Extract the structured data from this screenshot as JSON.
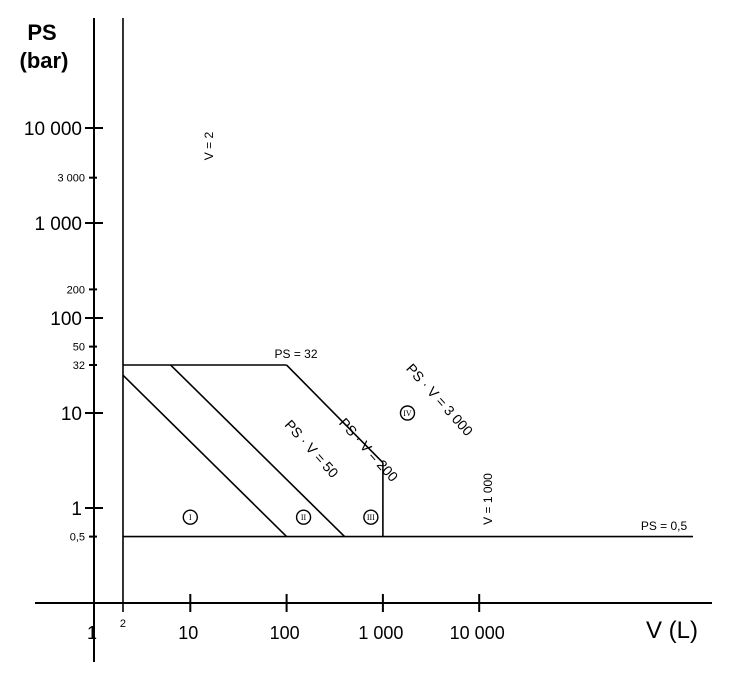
{
  "axes": {
    "y_title_line1": "PS",
    "y_title_line2": "(bar)",
    "x_title": "V (L)"
  },
  "y_ticks": [
    {
      "label": "10 000",
      "value": 10000,
      "size": "big"
    },
    {
      "label": "3 000",
      "value": 3000,
      "size": "small"
    },
    {
      "label": "1 000",
      "value": 1000,
      "size": "big"
    },
    {
      "label": "200",
      "value": 200,
      "size": "small"
    },
    {
      "label": "100",
      "value": 100,
      "size": "big"
    },
    {
      "label": "50",
      "value": 50,
      "size": "small"
    },
    {
      "label": "32",
      "value": 32,
      "size": "small"
    },
    {
      "label": "10",
      "value": 10,
      "size": "big"
    },
    {
      "label": "1",
      "value": 1,
      "size": "big"
    },
    {
      "label": "0,5",
      "value": 0.5,
      "size": "small"
    }
  ],
  "x_ticks": [
    {
      "label": "1",
      "value": 1,
      "size": "big"
    },
    {
      "label": "2",
      "value": 2,
      "size": "small"
    },
    {
      "label": "10",
      "value": 10,
      "size": "big"
    },
    {
      "label": "100",
      "value": 100,
      "size": "big"
    },
    {
      "label": "1 000",
      "value": 1000,
      "size": "big"
    },
    {
      "label": "10 000",
      "value": 10000,
      "size": "big"
    }
  ],
  "lines": {
    "v2_label": "V = 2",
    "ps32_label": "PS = 32",
    "ps05_label": "PS = 0,5",
    "psv50_label": "PS · V = 50",
    "psv200_label": "PS · V = 200",
    "psv3000_label": "PS · V = 3 000",
    "v1000_label": "V = 1 000"
  },
  "categories": [
    {
      "label": "I",
      "v": 10,
      "ps": 0.8
    },
    {
      "label": "II",
      "v": 150,
      "ps": 0.8
    },
    {
      "label": "III",
      "v": 750,
      "ps": 0.8
    },
    {
      "label": "IV",
      "v": 1800,
      "ps": 10
    }
  ],
  "chart_data": {
    "type": "diagram",
    "x_scale": "log",
    "y_scale": "log",
    "boundaries": [
      {
        "label": "V = 2",
        "kind": "vertical",
        "v": 2
      },
      {
        "label": "PS = 32",
        "kind": "horizontal",
        "ps": 32,
        "v_range": [
          2,
          100
        ]
      },
      {
        "label": "PS = 0,5",
        "kind": "horizontal",
        "ps": 0.5
      },
      {
        "label": "PS · V = 50",
        "kind": "product",
        "value": 50
      },
      {
        "label": "PS · V = 200",
        "kind": "product",
        "value": 200
      },
      {
        "label": "PS · V = 3 000",
        "kind": "product",
        "value": 3000
      },
      {
        "label": "V = 1 000",
        "kind": "vertical",
        "v": 1000,
        "ps_range": [
          0.5,
          3
        ]
      }
    ]
  }
}
